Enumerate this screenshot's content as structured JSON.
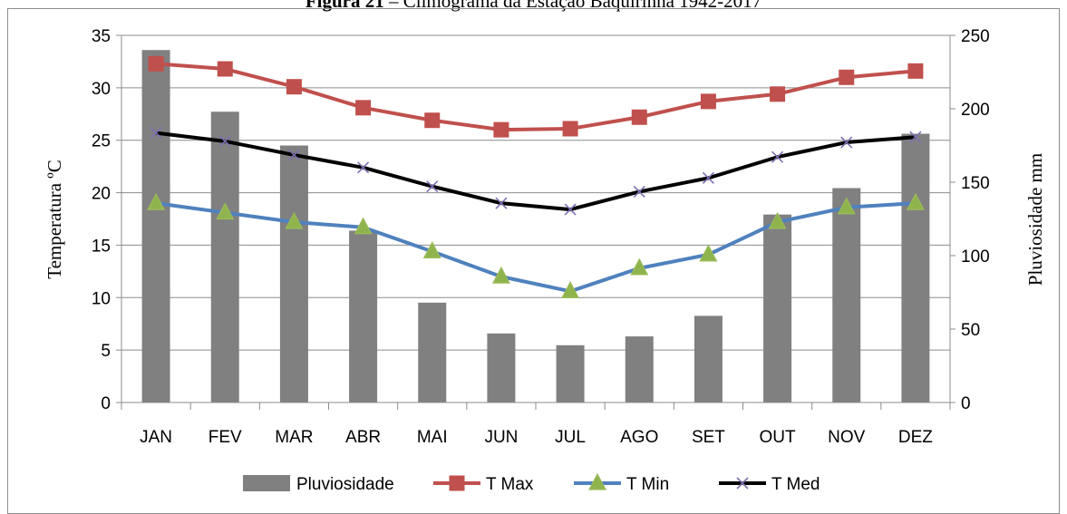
{
  "caption": {
    "prefix": "Figura 21",
    "text": " – Climograma da Estação Baquirinha 1942-2017"
  },
  "colors": {
    "bars": "#808080",
    "tmax": "#c0504d",
    "tmin": "#4f81bd",
    "tmin_marker": "#9bbb59",
    "tmed": "#000000",
    "tmed_marker": "#7f6fb0",
    "gridline": "#8c8c8c"
  },
  "chart_data": {
    "type": "bar",
    "categories": [
      "JAN",
      "FEV",
      "MAR",
      "ABR",
      "MAI",
      "JUN",
      "JUL",
      "AGO",
      "SET",
      "OUT",
      "NOV",
      "DEZ"
    ],
    "ylabel_left": "Temperatura ºC",
    "ylabel_right": "Pluviosidade mm",
    "ylim_left": [
      0,
      35
    ],
    "ylim_right": [
      0,
      250
    ],
    "yticks_left": [
      0,
      5,
      10,
      15,
      20,
      25,
      30,
      35
    ],
    "yticks_right": [
      0,
      50,
      100,
      150,
      200,
      250
    ],
    "grid": true,
    "legend_position": "bottom",
    "series": [
      {
        "name": "Pluviosidade",
        "type": "bar",
        "axis": "right",
        "values": [
          240,
          198,
          175,
          117,
          68,
          47,
          39,
          45,
          59,
          128,
          146,
          183
        ]
      },
      {
        "name": "T Max",
        "type": "line",
        "marker": "square",
        "axis": "left",
        "values": [
          32.3,
          31.8,
          30.1,
          28.1,
          26.9,
          26.0,
          26.1,
          27.2,
          28.7,
          29.4,
          31.0,
          31.6
        ]
      },
      {
        "name": "T Min",
        "type": "line",
        "marker": "triangle",
        "axis": "left",
        "values": [
          19.0,
          18.1,
          17.2,
          16.7,
          14.4,
          12.0,
          10.6,
          12.8,
          14.1,
          17.2,
          18.6,
          19.0
        ]
      },
      {
        "name": "T Med",
        "type": "line",
        "marker": "x",
        "axis": "left",
        "values": [
          25.7,
          24.9,
          23.6,
          22.4,
          20.6,
          19.0,
          18.4,
          20.1,
          21.4,
          23.4,
          24.8,
          25.3
        ]
      }
    ]
  }
}
